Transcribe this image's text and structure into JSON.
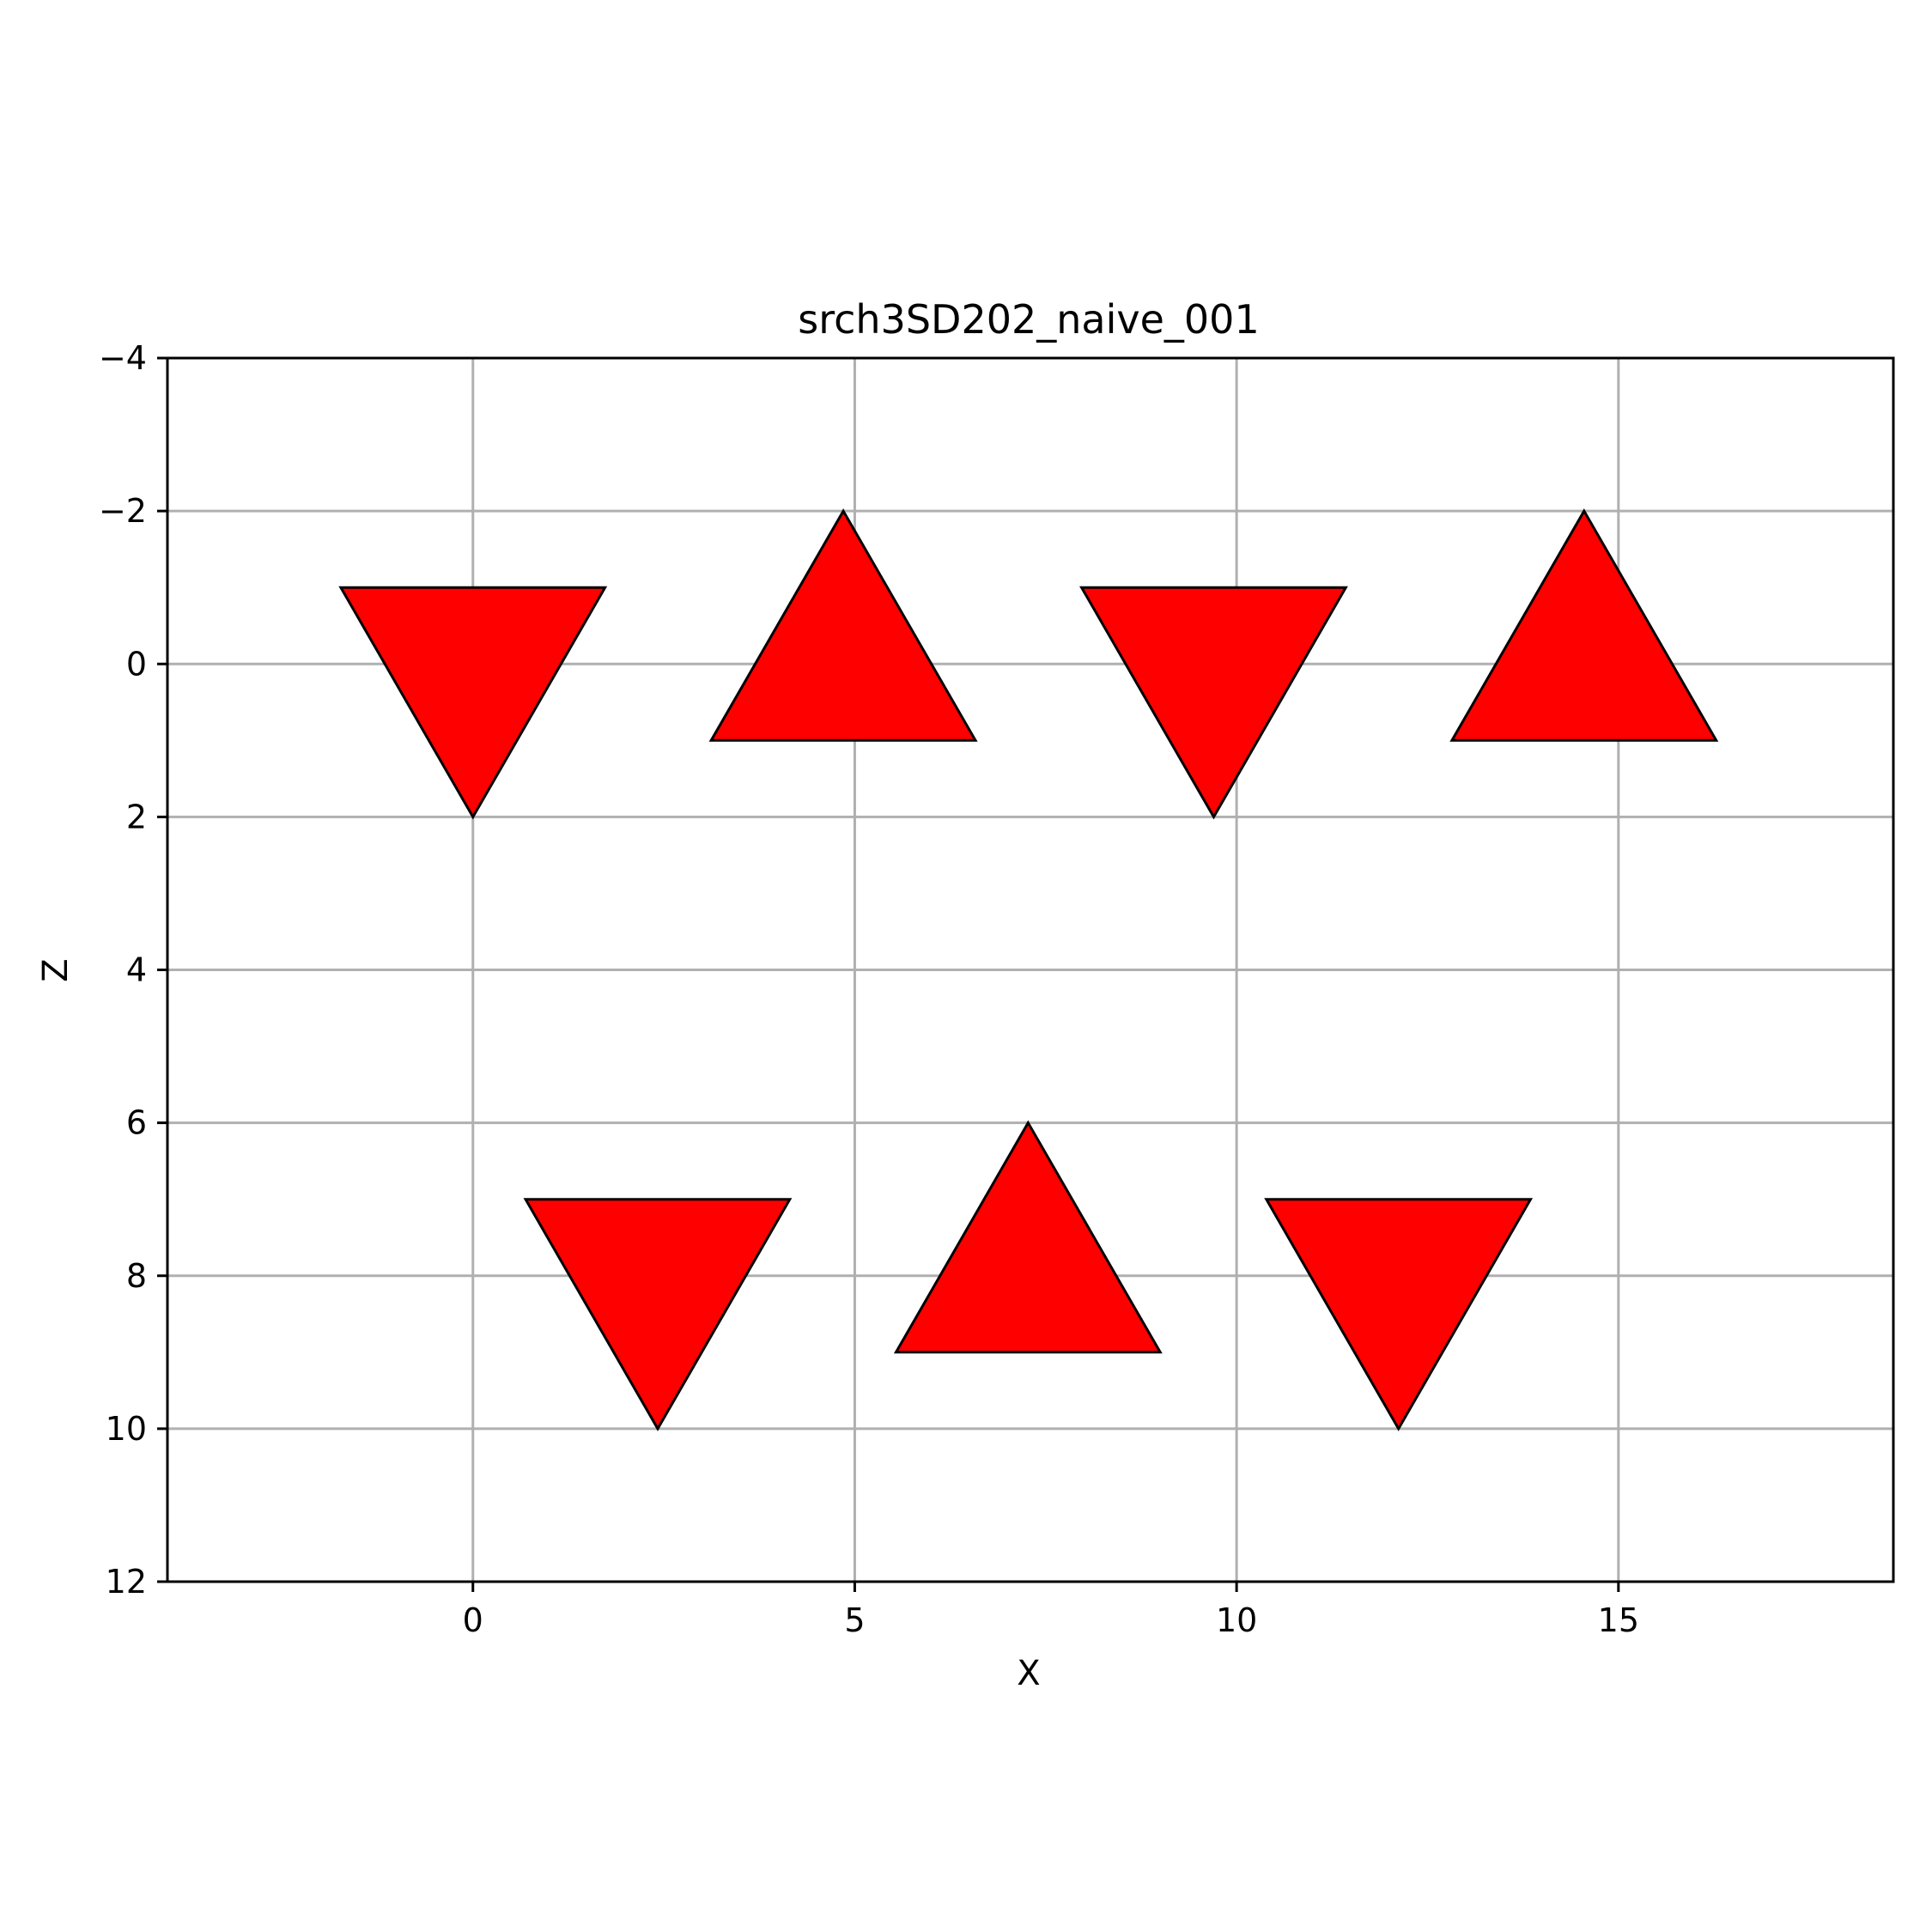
{
  "chart_data": {
    "type": "scatter",
    "title": "srch3SD202_naive_001",
    "xlabel": "X",
    "ylabel": "Z",
    "xlim": [
      -4,
      18.6
    ],
    "ylim": [
      12,
      -4
    ],
    "y_inverted": true,
    "grid": true,
    "xticks": [
      0,
      5,
      10,
      15
    ],
    "yticks": [
      -4,
      -2,
      0,
      2,
      4,
      6,
      8,
      10,
      12
    ],
    "xtick_labels": [
      "0",
      "5",
      "10",
      "15"
    ],
    "ytick_labels": [
      "−4",
      "−2",
      "0",
      "2",
      "4",
      "6",
      "8",
      "10",
      "12"
    ],
    "marker_color": "#ff0000",
    "edge_color": "#000000",
    "triangles": [
      {
        "orientation": "down",
        "vertices": [
          [
            -1.73,
            -1
          ],
          [
            1.73,
            -1
          ],
          [
            0,
            2
          ]
        ]
      },
      {
        "orientation": "up",
        "vertices": [
          [
            3.12,
            1
          ],
          [
            6.58,
            1
          ],
          [
            4.85,
            -2
          ]
        ]
      },
      {
        "orientation": "down",
        "vertices": [
          [
            7.97,
            -1
          ],
          [
            11.43,
            -1
          ],
          [
            9.7,
            2
          ]
        ]
      },
      {
        "orientation": "up",
        "vertices": [
          [
            12.82,
            1
          ],
          [
            16.28,
            1
          ],
          [
            14.55,
            -2
          ]
        ]
      },
      {
        "orientation": "down",
        "vertices": [
          [
            0.69,
            7
          ],
          [
            4.15,
            7
          ],
          [
            2.42,
            10
          ]
        ]
      },
      {
        "orientation": "up",
        "vertices": [
          [
            5.54,
            9
          ],
          [
            9.0,
            9
          ],
          [
            7.27,
            6
          ]
        ]
      },
      {
        "orientation": "down",
        "vertices": [
          [
            10.39,
            7
          ],
          [
            13.85,
            7
          ],
          [
            12.12,
            10
          ]
        ]
      }
    ]
  }
}
